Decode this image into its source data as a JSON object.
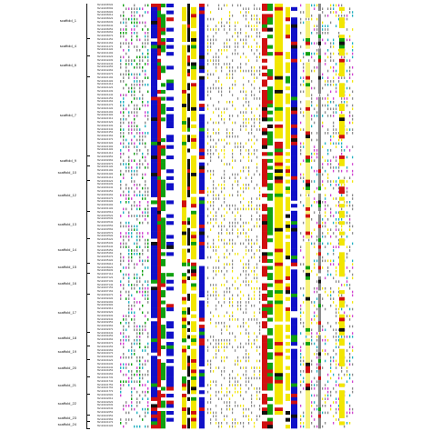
{
  "groups": [
    {
      "label": "scaffold_1",
      "rows": 10
    },
    {
      "label": "scaffold_4",
      "rows": 5
    },
    {
      "label": "scaffold_6",
      "rows": 6
    },
    {
      "label": "scaffold_7",
      "rows": 23
    },
    {
      "label": "scaffold_9",
      "rows": 3
    },
    {
      "label": "scaffold_10",
      "rows": 4
    },
    {
      "label": "scaffold_12",
      "rows": 9
    },
    {
      "label": "scaffold_13",
      "rows": 8
    },
    {
      "label": "scaffold_14",
      "rows": 7
    },
    {
      "label": "scaffold_15",
      "rows": 3
    },
    {
      "label": "scaffold_16",
      "rows": 6
    },
    {
      "label": "scaffold_17",
      "rows": 11
    },
    {
      "label": "scaffold_18",
      "rows": 4
    },
    {
      "label": "scaffold_19",
      "rows": 4
    },
    {
      "label": "scaffold_20",
      "rows": 5
    },
    {
      "label": "scaffold_21",
      "rows": 5
    },
    {
      "label": "scaffold_22",
      "rows": 6
    },
    {
      "label": "scaffold_23",
      "rows": 2
    },
    {
      "label": "scaffold_24",
      "rows": 2
    }
  ],
  "sequence_ids": [
    "Mal00036580",
    "Mal00036590",
    "Mal00036600",
    "Mal00036610",
    "Mal00036620",
    "Mal00036630",
    "Mal00036640",
    "Mal00036650",
    "Mal00036660",
    "Mal00036670",
    "Mal00011250",
    "Mal00011260",
    "Mal00011270",
    "Mal00011280",
    "Mal00011290",
    "Mal00018220",
    "Mal00018230",
    "Mal00018240",
    "Mal00018250",
    "Mal00018260",
    "Mal00018270",
    "Mal00021190",
    "Mal00021200",
    "Mal00021210",
    "Mal00021220",
    "Mal00021230",
    "Mal00021240",
    "Mal00021250",
    "Mal00021260",
    "Mal00021270",
    "Mal00021280",
    "Mal00021290",
    "Mal00021300",
    "Mal00021310",
    "Mal00021320",
    "Mal00021330",
    "Mal00021340",
    "Mal00021350",
    "Mal00021360",
    "Mal00021370",
    "Mal00021380",
    "Mal00021390",
    "Mal00021400",
    "Mal00021410",
    "Mal00030350",
    "Mal00030360",
    "Mal00030370",
    "Mal00031180",
    "Mal00031190",
    "Mal00031200",
    "Mal00031210",
    "Mal00031020",
    "Mal00031030",
    "Mal00031040",
    "Mal00031050",
    "Mal00031060",
    "Mal00031070",
    "Mal00031080",
    "Mal00031090",
    "Mal00031100",
    "Mal00033510",
    "Mal00033520",
    "Mal00033530",
    "Mal00033540",
    "Mal00033550",
    "Mal00033560",
    "Mal00033570",
    "Mal00033580",
    "Mal00035220",
    "Mal00035230",
    "Mal00035240",
    "Mal00035250",
    "Mal00035260",
    "Mal00035270",
    "Mal00035280",
    "Mal00036010",
    "Mal00036020",
    "Mal00036030",
    "Mal00037110",
    "Mal00037120",
    "Mal00037130",
    "Mal00037140",
    "Mal00037150",
    "Mal00037160",
    "Mal00038270",
    "Mal00038280",
    "Mal00038290",
    "Mal00038300",
    "Mal00038310",
    "Mal00038320",
    "Mal00038330",
    "Mal00038340",
    "Mal00038350",
    "Mal00038360",
    "Mal00038370",
    "Mal00039440",
    "Mal00039450",
    "Mal00039460",
    "Mal00039470",
    "Mal00040150",
    "Mal00040160",
    "Mal00040170",
    "Mal00040180",
    "Mal00041020",
    "Mal00041030",
    "Mal00041040",
    "Mal00041050",
    "Mal00041060",
    "Mal00041730",
    "Mal00041740",
    "Mal00041750",
    "Mal00041760",
    "Mal00041770",
    "Mal00042600",
    "Mal00042610",
    "Mal00042620",
    "Mal00042630",
    "Mal00042640",
    "Mal00042650",
    "Mal00043350",
    "Mal00043360",
    "Mal00044170",
    "Mal00044180"
  ],
  "residue_colors": {
    "blue": "#1010c8",
    "red": "#d01010",
    "green": "#10a010",
    "yellow": "#f2e600",
    "light_yellow": "#f7f27a",
    "black": "#111111",
    "gray": "#8a8a8a",
    "magenta": "#d040d0",
    "cyan": "#20b0c0"
  },
  "conserved_columns": [
    {
      "color": "blue",
      "coverage": 0.96
    },
    {
      "color": "blue",
      "coverage": 0.94
    },
    {
      "color": "red",
      "coverage": 0.55
    },
    {
      "color": "green",
      "coverage": 0.45
    },
    {
      "color": "yellow",
      "coverage": 0.9
    },
    {
      "color": "black",
      "coverage": 0.6
    },
    {
      "color": "yellow",
      "coverage": 0.8
    },
    {
      "color": "blue",
      "coverage": 0.9
    },
    {
      "color": "red",
      "coverage": 0.7
    },
    {
      "color": "green",
      "coverage": 0.6
    },
    {
      "color": "yellow",
      "coverage": 0.95
    },
    {
      "color": "yellow",
      "coverage": 0.7
    },
    {
      "color": "blue",
      "coverage": 0.9
    }
  ]
}
